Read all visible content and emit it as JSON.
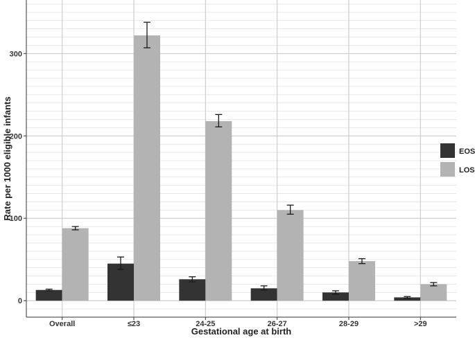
{
  "chart_data": {
    "type": "bar",
    "title": "",
    "xlabel": "Gestational age at birth",
    "ylabel": "Rate per 1000 eligible infants",
    "categories": [
      "Overall",
      "≤23",
      "24-25",
      "26-27",
      "28-29",
      ">29"
    ],
    "series": [
      {
        "name": "EOS",
        "color": "#333333",
        "values": [
          13,
          45,
          26,
          15,
          10,
          4
        ],
        "err_low": [
          12,
          38,
          23,
          13,
          8,
          3
        ],
        "err_high": [
          14,
          53,
          29,
          18,
          12,
          5
        ]
      },
      {
        "name": "LOS",
        "color": "#b3b3b3",
        "values": [
          88,
          322,
          218,
          110,
          48,
          20
        ],
        "err_low": [
          86,
          307,
          211,
          105,
          45,
          18
        ],
        "err_high": [
          90,
          338,
          226,
          116,
          51,
          22
        ]
      }
    ],
    "yticks": [
      0,
      100,
      200,
      300
    ],
    "ylim": [
      -20,
      365
    ],
    "grid": true,
    "legend": "right"
  }
}
